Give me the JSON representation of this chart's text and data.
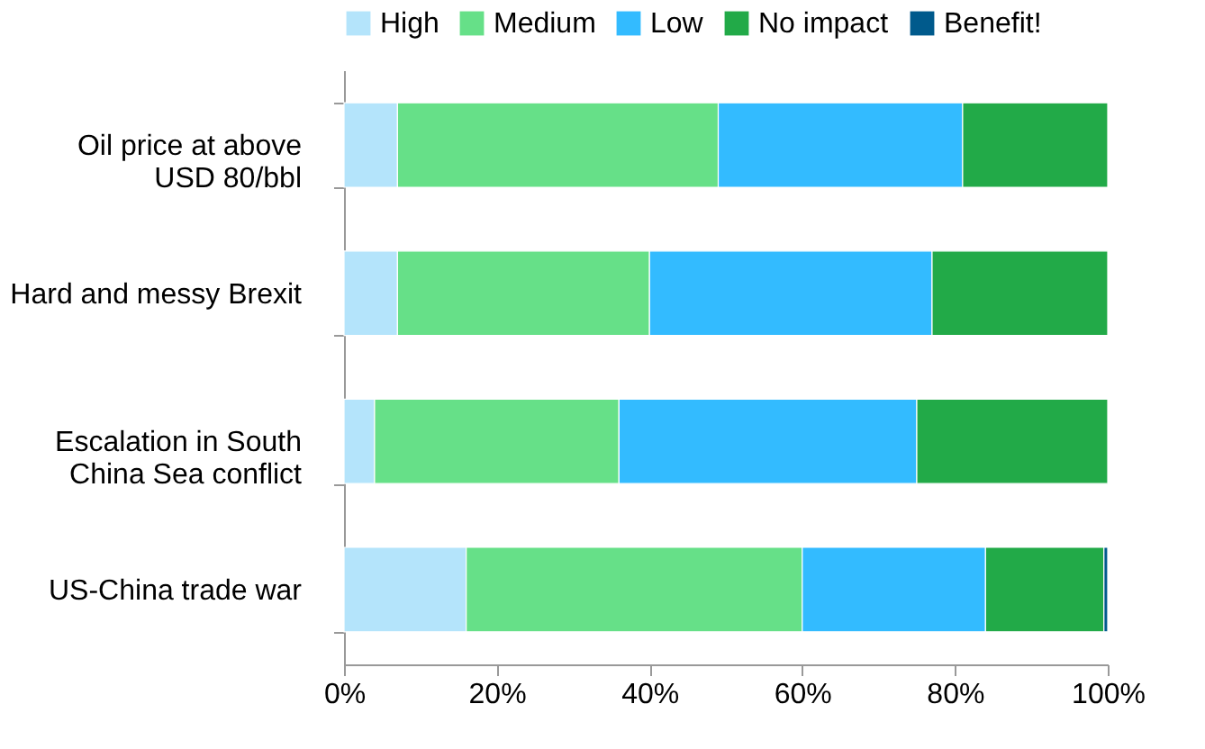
{
  "chart_data": {
    "type": "bar",
    "orientation": "horizontal",
    "stacked": true,
    "categories": [
      "Oil price at above\nUSD 80/bbl",
      "Hard and messy Brexit",
      "Escalation in South\nChina Sea conflict",
      "US-China trade war"
    ],
    "series": [
      {
        "name": "High",
        "color": "#b4e4fb",
        "values": [
          7,
          7,
          4,
          16
        ]
      },
      {
        "name": "Medium",
        "color": "#66e088",
        "values": [
          42,
          33,
          32,
          44
        ]
      },
      {
        "name": "Low",
        "color": "#33bbff",
        "values": [
          32,
          37,
          39,
          24
        ]
      },
      {
        "name": "No impact",
        "color": "#22aa48",
        "values": [
          19,
          23,
          25,
          15.5
        ]
      },
      {
        "name": "Benefit!",
        "color": "#005a8c",
        "values": [
          null,
          null,
          null,
          0.5
        ]
      }
    ],
    "xlim": [
      0,
      100
    ],
    "xticks": [
      {
        "value": 0,
        "label": "0%"
      },
      {
        "value": 20,
        "label": "20%"
      },
      {
        "value": 40,
        "label": "40%"
      },
      {
        "value": 60,
        "label": "60%"
      },
      {
        "value": 80,
        "label": "80%"
      },
      {
        "value": 100,
        "label": "100%"
      }
    ],
    "grid": false,
    "legend": "top right"
  }
}
